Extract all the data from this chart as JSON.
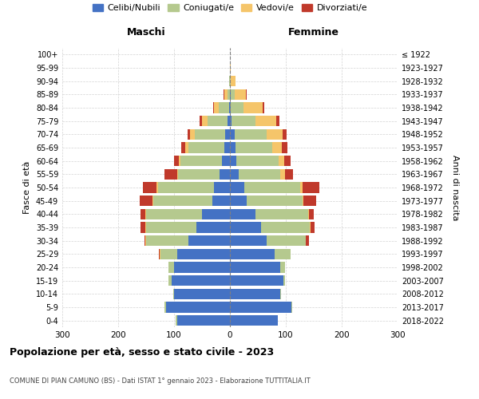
{
  "age_groups": [
    "0-4",
    "5-9",
    "10-14",
    "15-19",
    "20-24",
    "25-29",
    "30-34",
    "35-39",
    "40-44",
    "45-49",
    "50-54",
    "55-59",
    "60-64",
    "65-69",
    "70-74",
    "75-79",
    "80-84",
    "85-89",
    "90-94",
    "95-99",
    "100+"
  ],
  "birth_years": [
    "2018-2022",
    "2013-2017",
    "2008-2012",
    "2003-2007",
    "1998-2002",
    "1993-1997",
    "1988-1992",
    "1983-1987",
    "1978-1982",
    "1973-1977",
    "1968-1972",
    "1963-1967",
    "1958-1962",
    "1953-1957",
    "1948-1952",
    "1943-1947",
    "1938-1942",
    "1933-1937",
    "1928-1932",
    "1923-1927",
    "≤ 1922"
  ],
  "maschi": {
    "celibi": [
      95,
      115,
      100,
      105,
      100,
      95,
      75,
      60,
      50,
      32,
      28,
      18,
      14,
      10,
      8,
      5,
      2,
      0,
      0,
      0,
      0
    ],
    "coniugati": [
      2,
      2,
      2,
      5,
      10,
      30,
      75,
      90,
      100,
      105,
      100,
      75,
      75,
      65,
      55,
      35,
      18,
      5,
      1,
      0,
      0
    ],
    "vedovi": [
      0,
      0,
      0,
      0,
      0,
      1,
      1,
      2,
      2,
      2,
      3,
      2,
      3,
      5,
      8,
      10,
      8,
      5,
      1,
      0,
      0
    ],
    "divorziati": [
      0,
      0,
      0,
      0,
      0,
      1,
      2,
      8,
      8,
      22,
      25,
      22,
      8,
      7,
      5,
      4,
      2,
      1,
      0,
      0,
      0
    ]
  },
  "femmine": {
    "nubili": [
      85,
      110,
      90,
      95,
      90,
      80,
      65,
      55,
      45,
      30,
      25,
      15,
      12,
      10,
      8,
      3,
      2,
      1,
      0,
      0,
      0
    ],
    "coniugate": [
      1,
      2,
      1,
      3,
      8,
      28,
      70,
      88,
      95,
      100,
      100,
      75,
      75,
      65,
      58,
      42,
      22,
      8,
      2,
      0,
      0
    ],
    "vedove": [
      0,
      0,
      0,
      0,
      0,
      0,
      1,
      1,
      2,
      2,
      5,
      8,
      10,
      18,
      28,
      38,
      35,
      20,
      8,
      2,
      0
    ],
    "divorziate": [
      0,
      0,
      0,
      0,
      0,
      1,
      5,
      8,
      8,
      22,
      30,
      15,
      12,
      10,
      8,
      5,
      2,
      1,
      0,
      0,
      0
    ]
  },
  "colors": {
    "celibi": "#4472c4",
    "coniugati": "#b5c98e",
    "vedovi": "#f5c56a",
    "divorziati": "#c0392b"
  },
  "xlim": 300,
  "title": "Popolazione per età, sesso e stato civile - 2023",
  "subtitle": "COMUNE DI PIAN CAMUNO (BS) - Dati ISTAT 1° gennaio 2023 - Elaborazione TUTTITALIA.IT",
  "header_left": "Maschi",
  "header_right": "Femmine",
  "ylabel_left": "Fasce di età",
  "ylabel_right": "Anni di nascita",
  "legend_labels": [
    "Celibi/Nubili",
    "Coniugati/e",
    "Vedovi/e",
    "Divorziati/e"
  ],
  "bg_color": "#ffffff",
  "bar_height": 0.8
}
